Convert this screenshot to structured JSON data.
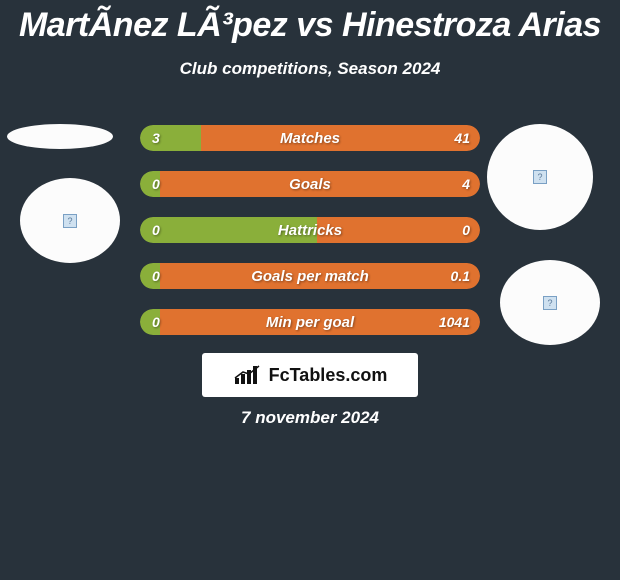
{
  "title": "MartÃ­nez LÃ³pez vs Hinestroza Arias",
  "subtitle": "Club competitions, Season 2024",
  "date": "7 november 2024",
  "logo_text": "FcTables.com",
  "colors": {
    "left": "#8aaf3a",
    "right": "#e0722f",
    "left_dim": "#9bbf4c",
    "right_dim": "#e0722f"
  },
  "rows": [
    {
      "label": "Matches",
      "left": "3",
      "right": "41",
      "left_pct": 18,
      "left_color": "#8aaf3a",
      "right_color": "#e0722f"
    },
    {
      "label": "Goals",
      "left": "0",
      "right": "4",
      "left_pct": 6,
      "left_color": "#8aaf3a",
      "right_color": "#e0722f"
    },
    {
      "label": "Hattricks",
      "left": "0",
      "right": "0",
      "left_pct": 52,
      "left_color": "#8aaf3a",
      "right_color": "#e0722f"
    },
    {
      "label": "Goals per match",
      "left": "0",
      "right": "0.1",
      "left_pct": 6,
      "left_color": "#8aaf3a",
      "right_color": "#e0722f"
    },
    {
      "label": "Min per goal",
      "left": "0",
      "right": "1041",
      "left_pct": 6,
      "left_color": "#8aaf3a",
      "right_color": "#e0722f"
    }
  ]
}
